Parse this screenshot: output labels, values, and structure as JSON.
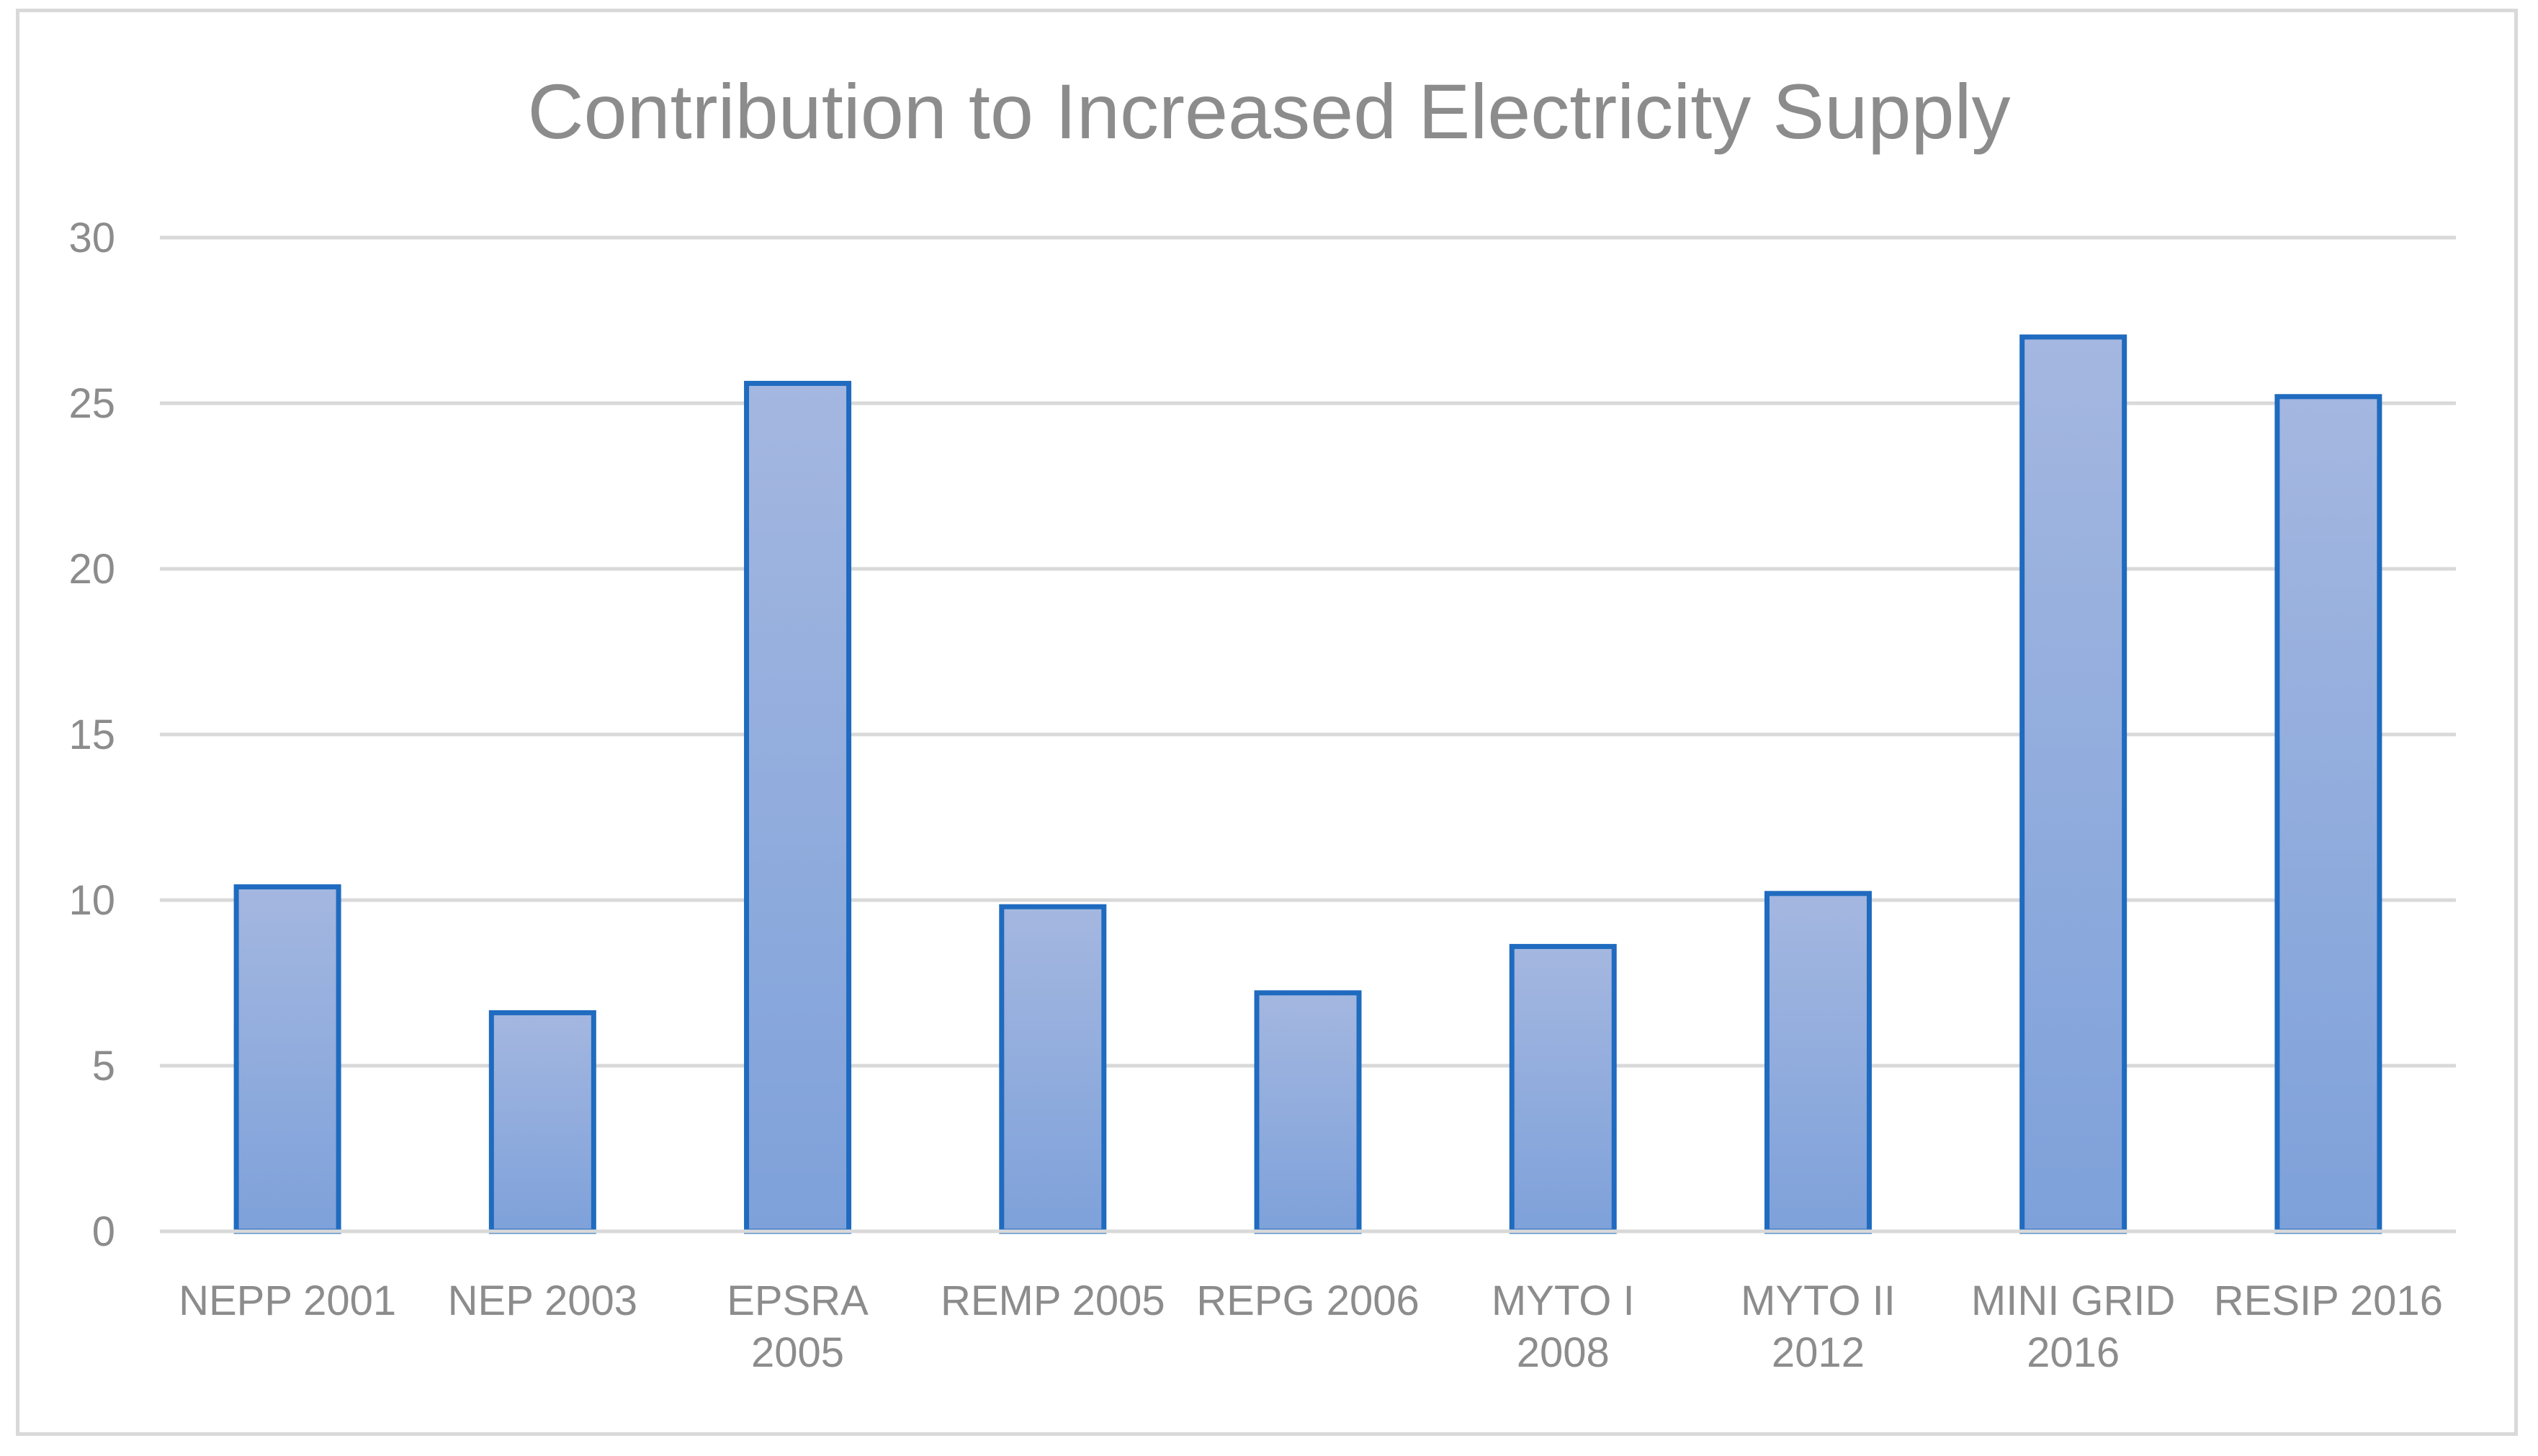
{
  "chart_data": {
    "type": "bar",
    "title": "Contribution to Increased Electricity Supply",
    "xlabel": "",
    "ylabel": "",
    "ylim": [
      0,
      30
    ],
    "yticks": [
      0,
      5,
      10,
      15,
      20,
      25,
      30
    ],
    "ytick_labels": [
      "0",
      "5",
      "10",
      "15",
      "20",
      "25",
      "30"
    ],
    "grid": true,
    "legend": "none",
    "categories": [
      [
        "NEPP 2001"
      ],
      [
        "NEP 2003"
      ],
      [
        "EPSRA",
        "2005"
      ],
      [
        "REMP 2005"
      ],
      [
        "REPG 2006"
      ],
      [
        "MYTO I",
        "2008"
      ],
      [
        "MYTO II",
        "2012"
      ],
      [
        "MINI GRID",
        "2016"
      ],
      [
        "RESIP 2016"
      ]
    ],
    "values": [
      10.4,
      6.6,
      25.6,
      9.8,
      7.2,
      8.6,
      10.2,
      27.0,
      25.2
    ],
    "colors": {
      "bar_top": "#a4b7e0",
      "bar_bottom": "#7ea1da",
      "bar_border": "#1f6bbf",
      "grid": "#d9d9d9",
      "text": "#8c8c8c"
    }
  }
}
